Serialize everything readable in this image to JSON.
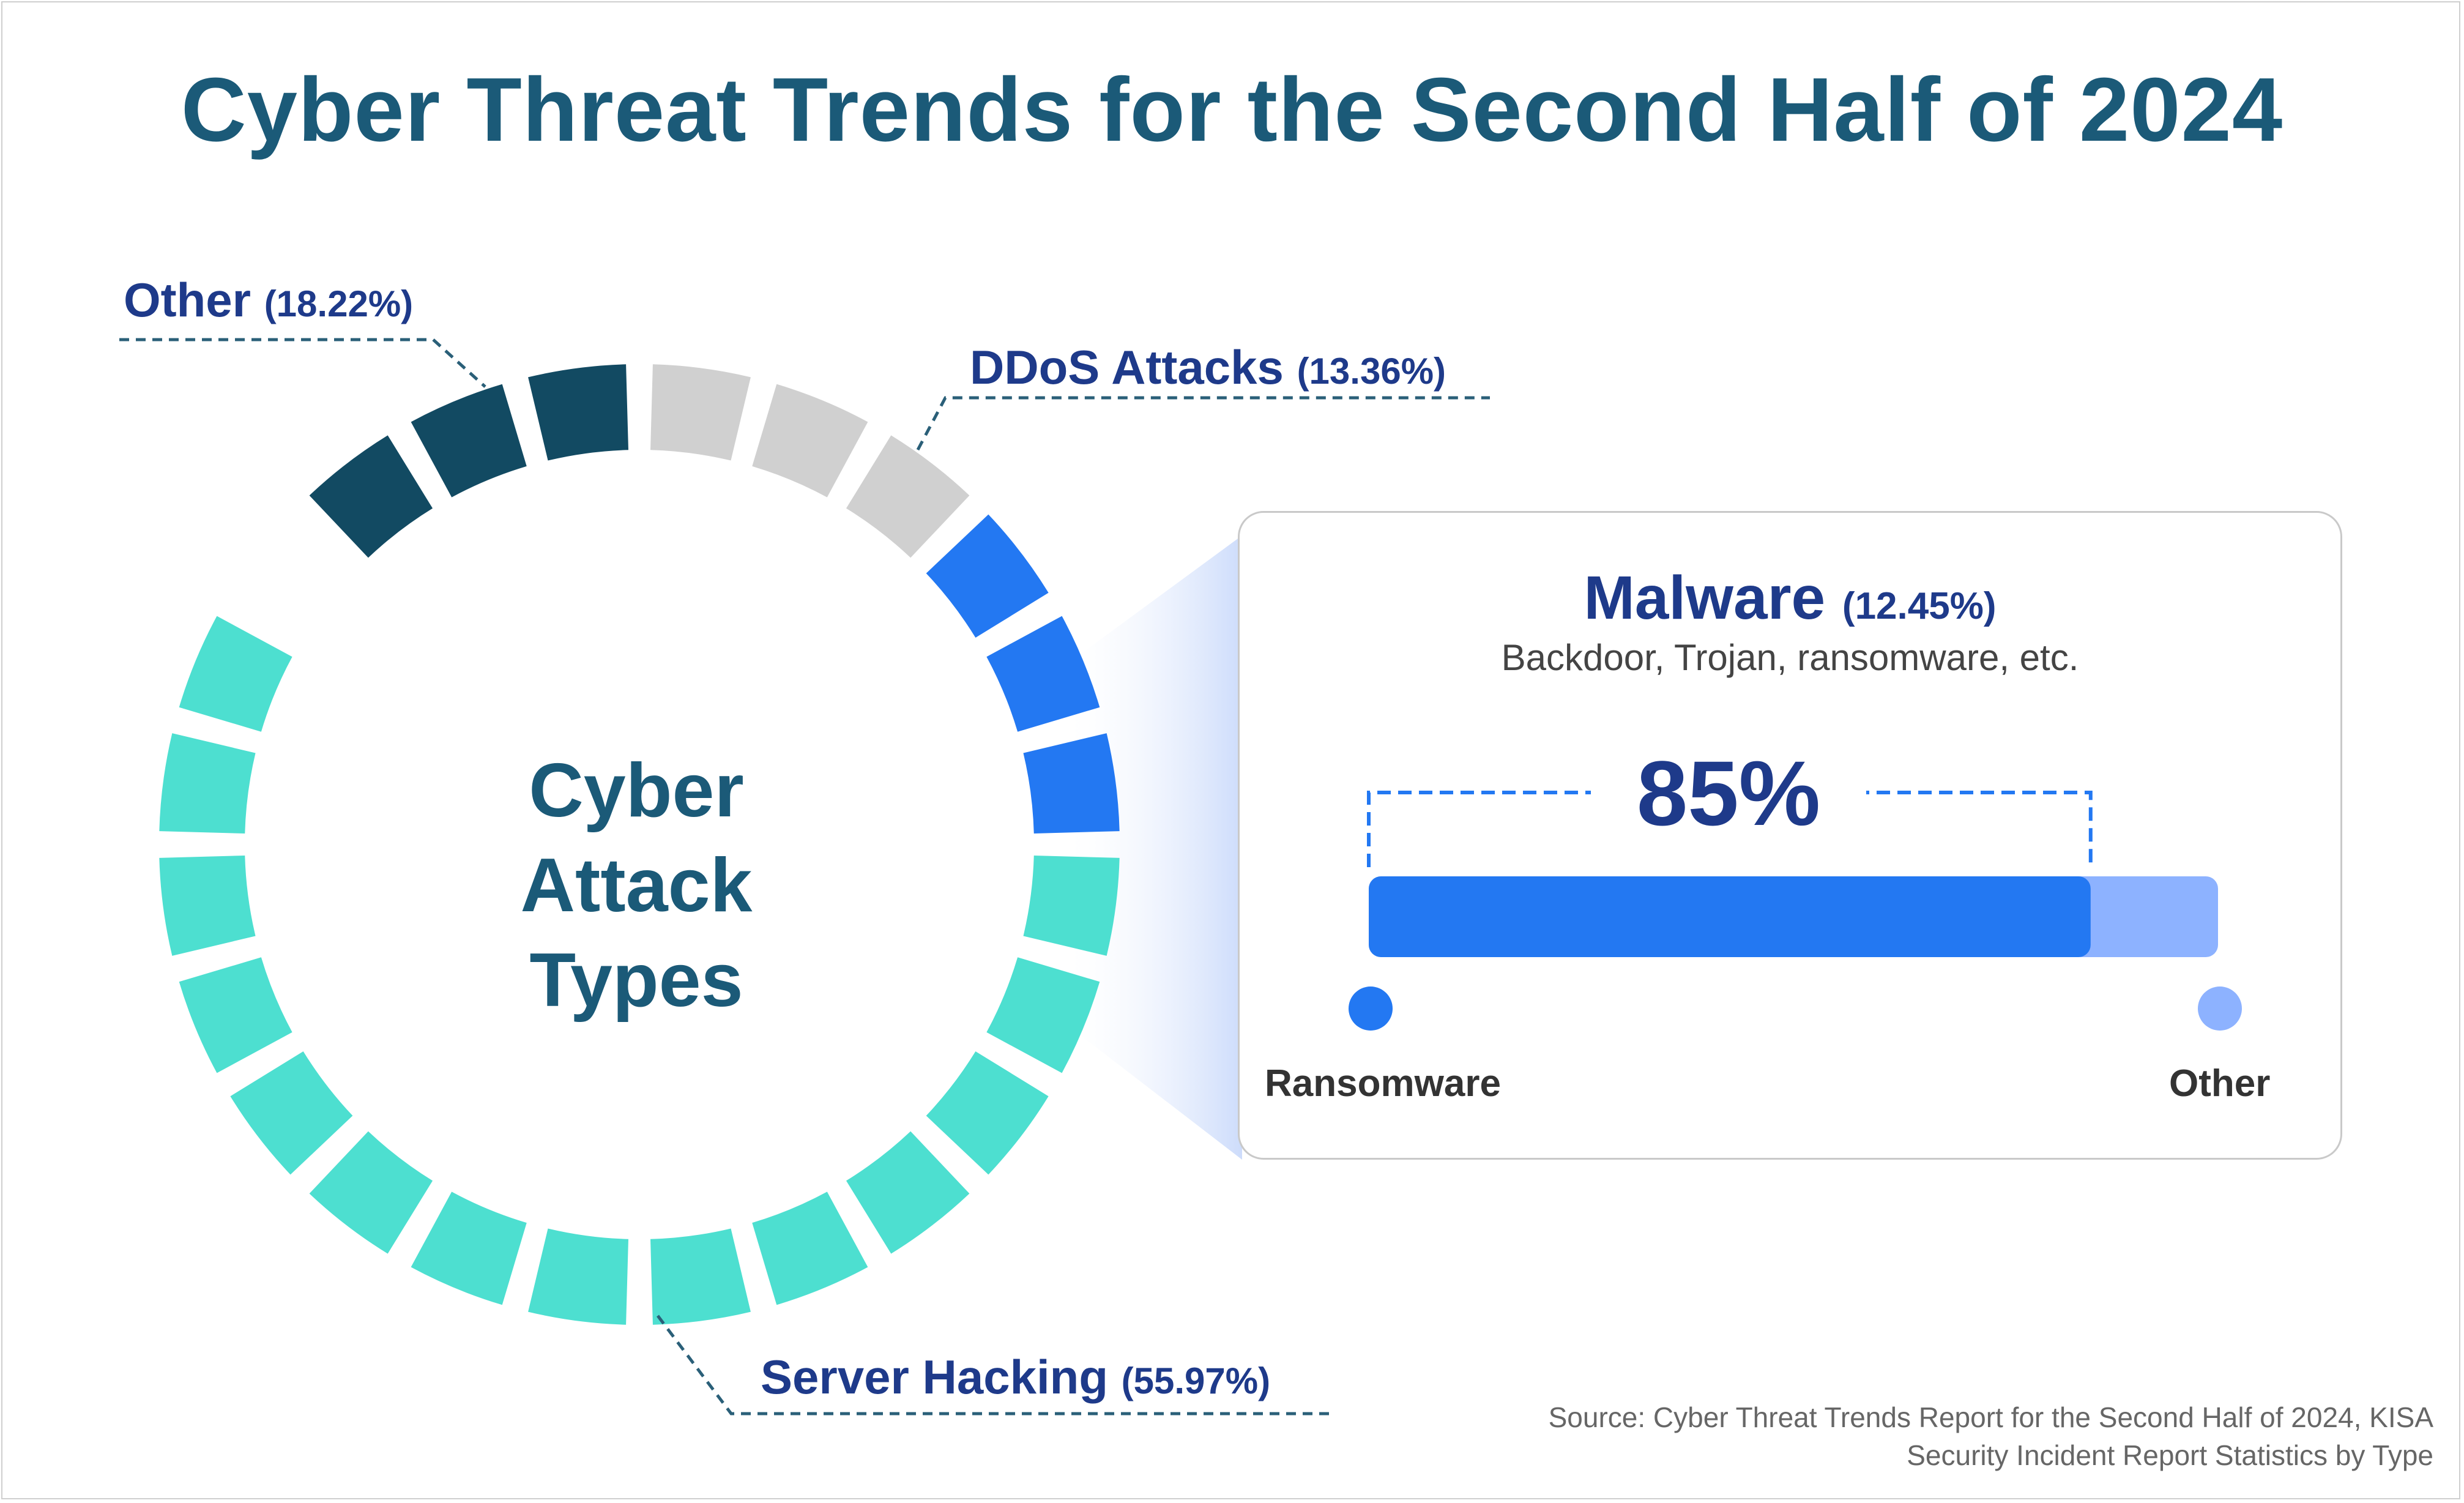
{
  "title": "Cyber Threat Trends for the Second Half of 2024",
  "center_label": [
    "Cyber",
    "Attack",
    "Types"
  ],
  "labels": {
    "other": {
      "name": "Other",
      "pct": "(18.22%)"
    },
    "ddos": {
      "name": "DDoS Attacks",
      "pct": "(13.36%)"
    },
    "server": {
      "name": "Server Hacking",
      "pct": "(55.97%)"
    }
  },
  "panel": {
    "title": "Malware",
    "pct": "(12.45%)",
    "subtitle": "Backdoor, Trojan, ransomware, etc.",
    "big_pct": "85%",
    "left_label": "Ransomware",
    "right_label": "Other"
  },
  "source": {
    "line1": "Source: Cyber Threat Trends Report for the Second Half of 2024, KISA",
    "line2": "Security Incident Report Statistics by Type"
  },
  "colors": {
    "title": "#1b5a78",
    "label": "#1e3a8a",
    "other": "#124a62",
    "ddos": "#d0d0d0",
    "malware": "#2378f2",
    "server": "#4ddfd0",
    "bar_other": "#8db2ff"
  },
  "chart_data": [
    {
      "type": "pie",
      "style": "segmented ring",
      "categories": [
        "Other",
        "DDoS Attacks",
        "Malware",
        "Server Hacking"
      ],
      "values": [
        18.22,
        13.36,
        12.45,
        55.97
      ],
      "segments": [
        3,
        3,
        3,
        14
      ]
    },
    {
      "type": "bar",
      "style": "stacked horizontal",
      "categories": [
        "Ransomware",
        "Other"
      ],
      "values": [
        85,
        15
      ]
    }
  ]
}
